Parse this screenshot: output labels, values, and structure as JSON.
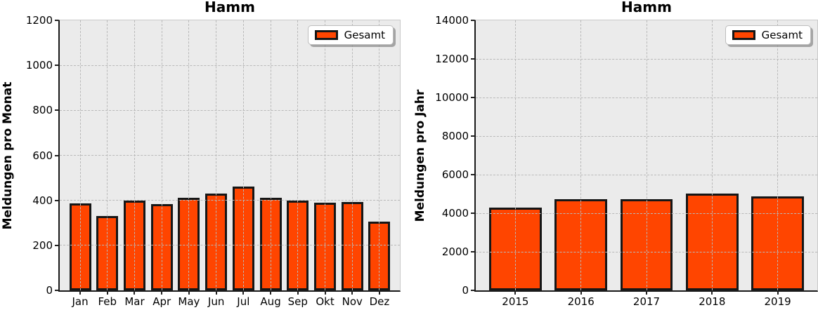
{
  "style": {
    "bar_fill": "#FF4500",
    "bar_edge": "#161616",
    "plot_background": "#EBEBEB",
    "grid_color": "#B9B9B9"
  },
  "chart_data": [
    {
      "type": "bar",
      "title": "Hamm",
      "xlabel": "",
      "ylabel": "Meldungen pro Monat",
      "categories": [
        "Jan",
        "Feb",
        "Mar",
        "Apr",
        "May",
        "Jun",
        "Jul",
        "Aug",
        "Sep",
        "Okt",
        "Nov",
        "Dez"
      ],
      "values": [
        388,
        330,
        400,
        384,
        413,
        430,
        460,
        411,
        399,
        391,
        393,
        305
      ],
      "ylim": [
        0,
        1200
      ],
      "yticks": [
        0,
        200,
        400,
        600,
        800,
        1000,
        1200
      ],
      "grid": true,
      "grid_style": "dashed, drawn above bars",
      "legend": [
        {
          "label": "Gesamt",
          "color": "#FF4500"
        }
      ],
      "legend_position": "upper right"
    },
    {
      "type": "bar",
      "title": "Hamm",
      "xlabel": "",
      "ylabel": "Meldungen pro Jahr",
      "categories": [
        "2015",
        "2016",
        "2017",
        "2018",
        "2019"
      ],
      "values": [
        4290,
        4720,
        4710,
        5030,
        4860
      ],
      "ylim": [
        0,
        14000
      ],
      "yticks": [
        0,
        2000,
        4000,
        6000,
        8000,
        10000,
        12000,
        14000
      ],
      "grid": true,
      "grid_style": "dashed, drawn above bars",
      "legend": [
        {
          "label": "Gesamt",
          "color": "#FF4500"
        }
      ],
      "legend_position": "upper right"
    }
  ]
}
